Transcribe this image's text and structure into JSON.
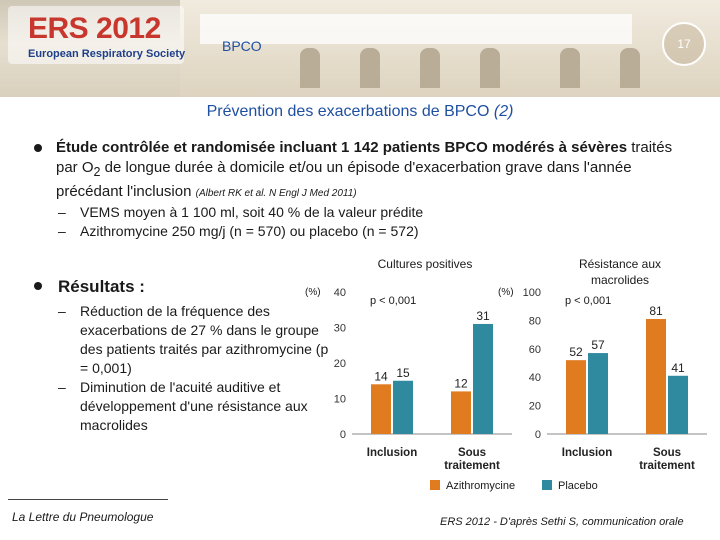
{
  "header": {
    "logo_title": "ERS 2012",
    "logo_subtitle": "European Respiratory Society",
    "topic": "BPCO",
    "page_number": "17"
  },
  "slide": {
    "title": "Prévention des exacerbations de BPCO",
    "title_suffix": "(2)",
    "bullet1": {
      "bold_part": "Étude contrôlée et randomisée incluant 1 142 patients BPCO modérés à sévères",
      "text_a": "traités par O",
      "subscript": "2",
      "text_b": "de longue durée à domicile et/ou un épisode d'exacerbation grave dans l'année précédant l'inclusion",
      "reference": "(Albert RK et al. N Engl J Med 2011)",
      "sub_items": [
        "VEMS moyen à 1 100 ml, soit 40 % de la valeur prédite",
        "Azithromycine 250 mg/j (n = 570) ou placebo (n = 572)"
      ]
    },
    "bullet2": {
      "heading": "Résultats :",
      "sub_items": [
        "Réduction de la fréquence des exacerbations de 27 % dans le groupe des patients traités par azithromycine (p = 0,001)",
        "Diminution de l'acuité auditive et développement d'une résistance aux macrolides"
      ]
    },
    "dash": "–"
  },
  "chart_data": [
    {
      "type": "bar",
      "title": "Cultures positives",
      "ylabel": "(%)",
      "ylim": [
        0,
        40
      ],
      "yticks": [
        0,
        10,
        20,
        30,
        40
      ],
      "categories": [
        "Inclusion",
        "Sous traitement"
      ],
      "series": [
        {
          "name": "Azithromycine",
          "values": [
            14,
            12
          ],
          "color": "#e07b1f"
        },
        {
          "name": "Placebo",
          "values": [
            15,
            31
          ],
          "color": "#2f8aa0"
        }
      ],
      "annotation": "p < 0,001"
    },
    {
      "type": "bar",
      "title": "Résistance aux macrolides",
      "ylabel": "(%)",
      "ylim": [
        0,
        100
      ],
      "yticks": [
        0,
        20,
        40,
        60,
        80,
        100
      ],
      "categories": [
        "Inclusion",
        "Sous traitement"
      ],
      "series": [
        {
          "name": "Azithromycine",
          "values": [
            52,
            81
          ],
          "color": "#e07b1f"
        },
        {
          "name": "Placebo",
          "values": [
            57,
            41
          ],
          "color": "#2f8aa0"
        }
      ],
      "annotation": "p < 0,001"
    }
  ],
  "legend": {
    "items": [
      {
        "label": "Azithromycine",
        "color": "#e07b1f"
      },
      {
        "label": "Placebo",
        "color": "#2f8aa0"
      }
    ]
  },
  "footer": {
    "left": "La Lettre du Pneumologue",
    "right": "ERS 2012 - D'après Sethi S, communication orale"
  }
}
